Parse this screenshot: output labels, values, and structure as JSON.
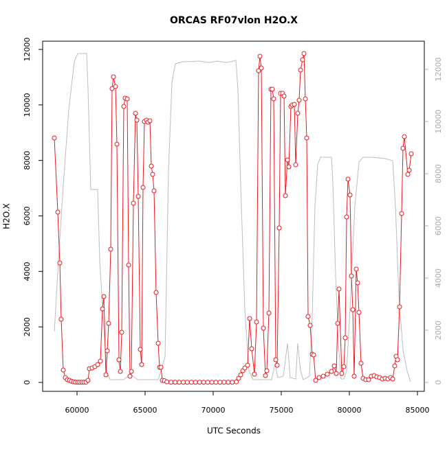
{
  "chart_data": {
    "type": "line",
    "title": "ORCAS RF07vlon H2O.X",
    "xlabel": "UTC Seconds",
    "ylabel": "H2O.X",
    "xlim": [
      57475,
      85505
    ],
    "ylim": [
      -322,
      12297
    ],
    "y2lim": [
      -342,
      13079
    ],
    "xticks": [
      60000,
      65000,
      70000,
      75000,
      80000,
      85000
    ],
    "yticks": [
      0,
      2000,
      4000,
      6000,
      8000,
      10000,
      12000
    ],
    "y2ticks": [
      0,
      2000,
      4000,
      6000,
      8000,
      10000,
      12000
    ],
    "y2color": "#aaaaaa",
    "series": [
      {
        "color": "#e8191f",
        "marker": "circle",
        "axis": "y",
        "x": [
          58333,
          58586,
          58737,
          58838,
          58990,
          59141,
          59293,
          59444,
          59596,
          59747,
          59899,
          60051,
          60202,
          60354,
          60505,
          60657,
          60808,
          60909,
          61111,
          61313,
          61515,
          61717,
          61869,
          61970,
          62121,
          62222,
          62323,
          62475,
          62576,
          62677,
          62828,
          62929,
          63081,
          63182,
          63283,
          63434,
          63535,
          63687,
          63788,
          63889,
          63990,
          64141,
          64293,
          64394,
          64495,
          64646,
          64747,
          64848,
          64949,
          65101,
          65202,
          65354,
          65455,
          65556,
          65657,
          65808,
          65960,
          66061,
          66162,
          66263,
          66414,
          66600,
          66900,
          67200,
          67500,
          67800,
          68100,
          68400,
          68700,
          69000,
          69300,
          69600,
          69900,
          70200,
          70500,
          70800,
          71100,
          71400,
          71700,
          71869,
          72020,
          72172,
          72323,
          72525,
          72677,
          72828,
          73030,
          73182,
          73333,
          73434,
          73535,
          73687,
          73838,
          73939,
          74091,
          74242,
          74343,
          74444,
          74596,
          74697,
          74848,
          74949,
          75101,
          75202,
          75303,
          75455,
          75556,
          75707,
          75808,
          75960,
          76061,
          76212,
          76313,
          76414,
          76566,
          76667,
          76768,
          76869,
          76970,
          77121,
          77273,
          77374,
          77525,
          77778,
          78081,
          78384,
          78687,
          78889,
          79040,
          79141,
          79242,
          79444,
          79596,
          79697,
          79798,
          79899,
          80051,
          80152,
          80253,
          80354,
          80505,
          80606,
          80707,
          80859,
          81010,
          81212,
          81414,
          81616,
          81818,
          82020,
          82222,
          82424,
          82626,
          82828,
          83030,
          83182,
          83333,
          83434,
          83535,
          83687,
          83838,
          83939,
          84040,
          84293,
          84394,
          84545
        ],
        "values": [
          8808,
          6136,
          4305,
          2276,
          445,
          173,
          99,
          74,
          40,
          20,
          10,
          5,
          5,
          5,
          5,
          10,
          74,
          495,
          520,
          569,
          643,
          767,
          2647,
          3093,
          272,
          1138,
          2128,
          4800,
          10589,
          11010,
          10663,
          8585,
          816,
          396,
          1806,
          9946,
          10243,
          10218,
          4231,
          223,
          396,
          6457,
          9698,
          9451,
          6705,
          1188,
          643,
          7026,
          9401,
          9451,
          9377,
          9426,
          7793,
          7496,
          6903,
          3241,
          1410,
          544,
          544,
          74,
          60,
          20,
          5,
          5,
          5,
          5,
          5,
          5,
          5,
          5,
          5,
          5,
          5,
          5,
          5,
          5,
          5,
          5,
          20,
          148,
          272,
          420,
          520,
          618,
          2301,
          1212,
          297,
          2177,
          11232,
          11752,
          11331,
          1954,
          247,
          420,
          2499,
          10564,
          10564,
          10218,
          816,
          618,
          5566,
          10415,
          10415,
          10317,
          6730,
          8016,
          7768,
          9946,
          9995,
          10020,
          7842,
          9698,
          10168,
          11257,
          11628,
          11851,
          10218,
          8808,
          2375,
          2053,
          1014,
          990,
          74,
          173,
          223,
          297,
          396,
          594,
          322,
          2128,
          3365,
          322,
          569,
          1608,
          5962,
          7323,
          6754,
          3835,
          2622,
          223,
          4082,
          3587,
          2524,
          693,
          148,
          99,
          99,
          223,
          247,
          198,
          173,
          124,
          148,
          124,
          173,
          124,
          594,
          940,
          816,
          2721,
          6086,
          8437,
          8857,
          7496,
          7645,
          8239
        ]
      },
      {
        "color": "#bebebe",
        "axis": "y2",
        "x": [
          58333,
          58636,
          58990,
          59394,
          59798,
          60051,
          60303,
          60707,
          60808,
          61010,
          61263,
          61515,
          61667,
          61919,
          62172,
          62424,
          62677,
          62929,
          63182,
          63434,
          63687,
          63939,
          64192,
          64444,
          64949,
          65455,
          65960,
          66465,
          66717,
          66970,
          67222,
          67727,
          68990,
          69747,
          70253,
          71010,
          71667,
          71818,
          72020,
          72323,
          72626,
          72929,
          73939,
          74293,
          74545,
          74747,
          75152,
          75455,
          75657,
          76061,
          76212,
          76414,
          76616,
          77071,
          77273,
          77475,
          77677,
          77879,
          78384,
          78687,
          78788,
          78990,
          79192,
          79394,
          79596,
          79798,
          80101,
          80404,
          80707,
          81010,
          81616,
          82626,
          83182,
          83384,
          83636,
          83939,
          84242,
          84495
        ],
        "values": [
          1947,
          4658,
          7553,
          10447,
          12289,
          12605,
          12605,
          12605,
          11237,
          7395,
          7395,
          7395,
          4658,
          2553,
          447,
          105,
          105,
          105,
          105,
          105,
          210,
          316,
          210,
          105,
          105,
          105,
          105,
          974,
          8079,
          11500,
          12211,
          12289,
          12316,
          12263,
          12316,
          12263,
          12342,
          11237,
          7553,
          2816,
          447,
          105,
          105,
          105,
          711,
          184,
          237,
          1500,
          184,
          132,
          1500,
          447,
          105,
          237,
          2553,
          6763,
          8342,
          8632,
          8632,
          8632,
          7684,
          4132,
          1500,
          132,
          132,
          447,
          3342,
          6763,
          8447,
          8632,
          8632,
          8579,
          8500,
          6763,
          3342,
          1237,
          447,
          26
        ]
      }
    ]
  }
}
